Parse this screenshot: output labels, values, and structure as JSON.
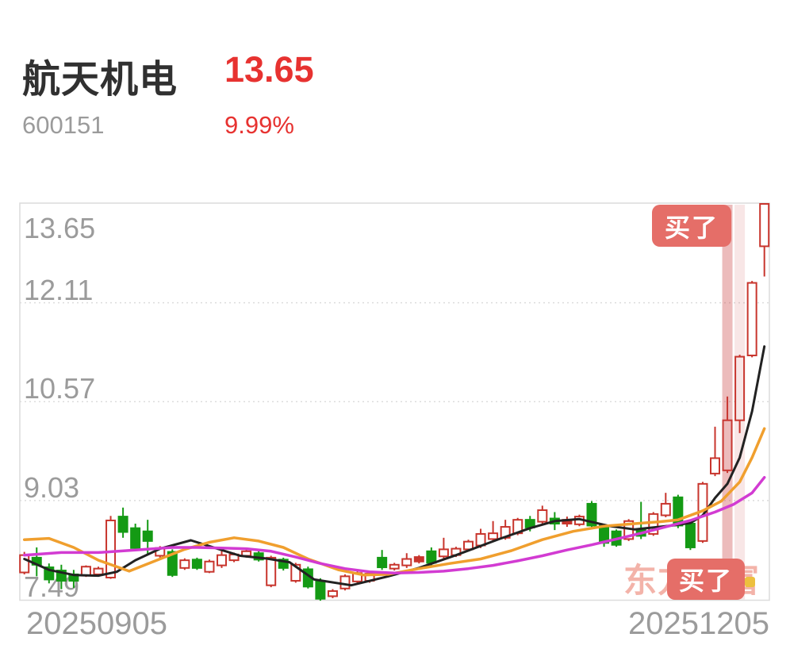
{
  "header": {
    "name": "航天机电",
    "price": "13.65",
    "code": "600151",
    "change": "9.99%"
  },
  "badges": {
    "top": "买了",
    "bottom": "买了"
  },
  "watermark": "东方财富",
  "axis": {
    "y_labels": [
      "13.65",
      "12.11",
      "10.57",
      "9.03",
      "7.49"
    ],
    "y_values": [
      13.65,
      12.11,
      10.57,
      9.03,
      7.49
    ],
    "x_label_left": "20250905",
    "x_label_right": "20251205"
  },
  "colors": {
    "up": "#c8352d",
    "up_fill": "#ffffff",
    "down": "#149a14",
    "header_red": "#e73230",
    "header_dark": "#303030",
    "header_gray": "#9b9b9b",
    "ma_black": "#222222",
    "ma_orange": "#f09f2e",
    "ma_magenta": "#d23bd2",
    "band_dark": "rgba(200,60,60,0.35)",
    "band_light": "rgba(200,60,60,0.13)",
    "badge_bg": "#e56e68",
    "watermark_pink": "#f3b3a9",
    "grid": "#dcdcdc"
  },
  "chart_data": {
    "type": "candlestick",
    "symbol": "600151",
    "name": "航天机电",
    "x_range": [
      "20250905",
      "20251205"
    ],
    "ylim": [
      7.49,
      13.65
    ],
    "grid_values": [
      12.11,
      10.57,
      9.03
    ],
    "legend": "none",
    "candles": [
      {
        "t": "up",
        "o": 7.91,
        "h": 8.23,
        "l": 7.88,
        "c": 8.18
      },
      {
        "t": "down",
        "o": 8.14,
        "h": 8.3,
        "l": 7.85,
        "c": 8.03
      },
      {
        "t": "down",
        "o": 7.99,
        "h": 8.05,
        "l": 7.74,
        "c": 7.8
      },
      {
        "t": "down",
        "o": 7.94,
        "h": 8.03,
        "l": 7.65,
        "c": 7.78
      },
      {
        "t": "down",
        "o": 7.88,
        "h": 7.95,
        "l": 7.67,
        "c": 7.78
      },
      {
        "t": "up",
        "o": 7.86,
        "h": 8.02,
        "l": 7.84,
        "c": 8.0
      },
      {
        "t": "up",
        "o": 7.88,
        "h": 8.0,
        "l": 7.86,
        "c": 7.97
      },
      {
        "t": "up",
        "o": 7.83,
        "h": 8.79,
        "l": 7.81,
        "c": 8.72
      },
      {
        "t": "down",
        "o": 8.78,
        "h": 8.92,
        "l": 8.45,
        "c": 8.54
      },
      {
        "t": "down",
        "o": 8.6,
        "h": 8.67,
        "l": 8.25,
        "c": 8.29
      },
      {
        "t": "down",
        "o": 8.55,
        "h": 8.73,
        "l": 8.18,
        "c": 8.4
      },
      {
        "t": "up",
        "o": 8.17,
        "h": 8.32,
        "l": 8.14,
        "c": 8.29
      },
      {
        "t": "down",
        "o": 8.23,
        "h": 8.27,
        "l": 7.84,
        "c": 7.87
      },
      {
        "t": "up",
        "o": 7.98,
        "h": 8.13,
        "l": 7.95,
        "c": 8.1
      },
      {
        "t": "down",
        "o": 8.11,
        "h": 8.14,
        "l": 7.95,
        "c": 7.98
      },
      {
        "t": "up",
        "o": 7.92,
        "h": 8.11,
        "l": 7.9,
        "c": 8.08
      },
      {
        "t": "up",
        "o": 8.02,
        "h": 8.26,
        "l": 7.98,
        "c": 8.18
      },
      {
        "t": "up",
        "o": 8.1,
        "h": 8.22,
        "l": 8.07,
        "c": 8.19
      },
      {
        "t": "up",
        "o": 8.17,
        "h": 8.27,
        "l": 8.14,
        "c": 8.24
      },
      {
        "t": "down",
        "o": 8.21,
        "h": 8.25,
        "l": 8.08,
        "c": 8.11
      },
      {
        "t": "up",
        "o": 7.71,
        "h": 8.17,
        "l": 7.68,
        "c": 8.14
      },
      {
        "t": "down",
        "o": 8.11,
        "h": 8.14,
        "l": 7.94,
        "c": 7.98
      },
      {
        "t": "up",
        "o": 7.78,
        "h": 8.06,
        "l": 7.75,
        "c": 8.03
      },
      {
        "t": "down",
        "o": 7.96,
        "h": 8.0,
        "l": 7.66,
        "c": 7.69
      },
      {
        "t": "down",
        "o": 7.78,
        "h": 7.82,
        "l": 7.47,
        "c": 7.5
      },
      {
        "t": "up",
        "o": 7.54,
        "h": 7.65,
        "l": 7.51,
        "c": 7.62
      },
      {
        "t": "up",
        "o": 7.66,
        "h": 7.88,
        "l": 7.63,
        "c": 7.85
      },
      {
        "t": "up",
        "o": 7.77,
        "h": 7.93,
        "l": 7.74,
        "c": 7.9
      },
      {
        "t": "up",
        "o": 7.78,
        "h": 7.92,
        "l": 7.75,
        "c": 7.89
      },
      {
        "t": "down",
        "o": 8.14,
        "h": 8.26,
        "l": 7.95,
        "c": 7.99
      },
      {
        "t": "up",
        "o": 7.97,
        "h": 8.06,
        "l": 7.94,
        "c": 8.03
      },
      {
        "t": "up",
        "o": 8.02,
        "h": 8.21,
        "l": 7.98,
        "c": 8.12
      },
      {
        "t": "up_solid",
        "o": 8.08,
        "h": 8.18,
        "l": 8.05,
        "c": 8.15
      },
      {
        "t": "down",
        "o": 8.24,
        "h": 8.3,
        "l": 8.02,
        "c": 8.06
      },
      {
        "t": "up",
        "o": 8.16,
        "h": 8.45,
        "l": 8.12,
        "c": 8.27
      },
      {
        "t": "up",
        "o": 8.18,
        "h": 8.31,
        "l": 8.15,
        "c": 8.28
      },
      {
        "t": "up",
        "o": 8.27,
        "h": 8.42,
        "l": 8.24,
        "c": 8.39
      },
      {
        "t": "up",
        "o": 8.33,
        "h": 8.59,
        "l": 8.29,
        "c": 8.51
      },
      {
        "t": "up",
        "o": 8.43,
        "h": 8.71,
        "l": 8.39,
        "c": 8.52
      },
      {
        "t": "up",
        "o": 8.45,
        "h": 8.73,
        "l": 8.42,
        "c": 8.62
      },
      {
        "t": "up",
        "o": 8.52,
        "h": 8.76,
        "l": 8.49,
        "c": 8.73
      },
      {
        "t": "down",
        "o": 8.73,
        "h": 8.79,
        "l": 8.55,
        "c": 8.61
      },
      {
        "t": "up",
        "o": 8.7,
        "h": 8.95,
        "l": 8.66,
        "c": 8.88
      },
      {
        "t": "down",
        "o": 8.75,
        "h": 8.85,
        "l": 8.57,
        "c": 8.67
      },
      {
        "t": "up_solid",
        "o": 8.67,
        "h": 8.78,
        "l": 8.62,
        "c": 8.73
      },
      {
        "t": "up",
        "o": 8.66,
        "h": 8.81,
        "l": 8.63,
        "c": 8.78
      },
      {
        "t": "down",
        "o": 8.98,
        "h": 9.02,
        "l": 8.6,
        "c": 8.64
      },
      {
        "t": "down",
        "o": 8.64,
        "h": 8.67,
        "l": 8.31,
        "c": 8.37
      },
      {
        "t": "down",
        "o": 8.55,
        "h": 8.58,
        "l": 8.31,
        "c": 8.34
      },
      {
        "t": "up",
        "o": 8.43,
        "h": 8.74,
        "l": 8.4,
        "c": 8.71
      },
      {
        "t": "down",
        "o": 8.58,
        "h": 9.01,
        "l": 8.43,
        "c": 8.48
      },
      {
        "t": "up",
        "o": 8.51,
        "h": 8.85,
        "l": 8.48,
        "c": 8.82
      },
      {
        "t": "up",
        "o": 8.8,
        "h": 9.15,
        "l": 8.77,
        "c": 8.98
      },
      {
        "t": "down",
        "o": 9.08,
        "h": 9.12,
        "l": 8.6,
        "c": 8.64
      },
      {
        "t": "down",
        "o": 8.67,
        "h": 8.7,
        "l": 8.26,
        "c": 8.3
      },
      {
        "t": "up",
        "o": 8.4,
        "h": 9.32,
        "l": 8.37,
        "c": 9.29
      },
      {
        "t": "up",
        "o": 9.45,
        "h": 10.18,
        "l": 9.41,
        "c": 9.69
      },
      {
        "t": "up",
        "o": 9.5,
        "h": 10.65,
        "l": 9.46,
        "c": 10.28
      },
      {
        "t": "up",
        "o": 10.28,
        "h": 11.3,
        "l": 10.08,
        "c": 11.27
      },
      {
        "t": "up",
        "o": 11.29,
        "h": 12.45,
        "l": 11.26,
        "c": 12.42
      },
      {
        "t": "up",
        "o": 12.99,
        "h": 13.65,
        "l": 12.52,
        "c": 13.65
      }
    ],
    "buy_markers": [
      {
        "index": 57,
        "shade": "dark",
        "label": "买了"
      },
      {
        "index": 58,
        "shade": "light",
        "label": "买了"
      }
    ],
    "ma_lines": [
      {
        "name": "ma-short-black",
        "color": "#222222",
        "width": 3,
        "points": [
          [
            0,
            8.12
          ],
          [
            2,
            7.95
          ],
          [
            4,
            7.87
          ],
          [
            6,
            7.86
          ],
          [
            7.5,
            7.92
          ],
          [
            9,
            8.1
          ],
          [
            11,
            8.28
          ],
          [
            13.5,
            8.41
          ],
          [
            15.5,
            8.29
          ],
          [
            17.5,
            8.17
          ],
          [
            19.5,
            8.13
          ],
          [
            21.5,
            8.07
          ],
          [
            23.5,
            7.8
          ],
          [
            26.5,
            7.71
          ],
          [
            29.5,
            7.85
          ],
          [
            32,
            7.98
          ],
          [
            35,
            8.18
          ],
          [
            38.5,
            8.43
          ],
          [
            41,
            8.6
          ],
          [
            43,
            8.71
          ],
          [
            45,
            8.74
          ],
          [
            47.5,
            8.63
          ],
          [
            49.5,
            8.58
          ],
          [
            52.5,
            8.64
          ],
          [
            54,
            8.68
          ],
          [
            55,
            8.8
          ],
          [
            56,
            9.07
          ],
          [
            57,
            9.29
          ],
          [
            58,
            9.7
          ],
          [
            59,
            10.42
          ],
          [
            60,
            11.43
          ]
        ]
      },
      {
        "name": "ma-mid-orange",
        "color": "#f09f2e",
        "width": 3.5,
        "points": [
          [
            0,
            8.42
          ],
          [
            2,
            8.44
          ],
          [
            4,
            8.3
          ],
          [
            6,
            8.1
          ],
          [
            8.5,
            7.93
          ],
          [
            11,
            8.12
          ],
          [
            13,
            8.27
          ],
          [
            15,
            8.38
          ],
          [
            17,
            8.45
          ],
          [
            19,
            8.4
          ],
          [
            21,
            8.3
          ],
          [
            23,
            8.12
          ],
          [
            25.5,
            7.95
          ],
          [
            27.5,
            7.87
          ],
          [
            29.5,
            7.88
          ],
          [
            32,
            7.97
          ],
          [
            34.5,
            8.05
          ],
          [
            37,
            8.12
          ],
          [
            39.5,
            8.25
          ],
          [
            42,
            8.42
          ],
          [
            44.5,
            8.55
          ],
          [
            47,
            8.63
          ],
          [
            49.5,
            8.67
          ],
          [
            51.5,
            8.7
          ],
          [
            53,
            8.73
          ],
          [
            55,
            8.87
          ],
          [
            56.5,
            9.02
          ],
          [
            58,
            9.32
          ],
          [
            59,
            9.7
          ],
          [
            60,
            10.15
          ]
        ]
      },
      {
        "name": "ma-long-magenta",
        "color": "#d23bd2",
        "width": 3.5,
        "points": [
          [
            0,
            8.18
          ],
          [
            3,
            8.22
          ],
          [
            6,
            8.22
          ],
          [
            9,
            8.26
          ],
          [
            12,
            8.3
          ],
          [
            14,
            8.3
          ],
          [
            16,
            8.29
          ],
          [
            18,
            8.28
          ],
          [
            20,
            8.24
          ],
          [
            22,
            8.15
          ],
          [
            24,
            8.05
          ],
          [
            26,
            7.97
          ],
          [
            28,
            7.92
          ],
          [
            30,
            7.9
          ],
          [
            32,
            7.91
          ],
          [
            34,
            7.93
          ],
          [
            36,
            7.97
          ],
          [
            38,
            8.02
          ],
          [
            40,
            8.09
          ],
          [
            42,
            8.17
          ],
          [
            44,
            8.26
          ],
          [
            46,
            8.34
          ],
          [
            48,
            8.43
          ],
          [
            50,
            8.52
          ],
          [
            52,
            8.62
          ],
          [
            54,
            8.72
          ],
          [
            56,
            8.85
          ],
          [
            57.5,
            8.97
          ],
          [
            59,
            9.15
          ],
          [
            60,
            9.39
          ]
        ]
      }
    ]
  }
}
